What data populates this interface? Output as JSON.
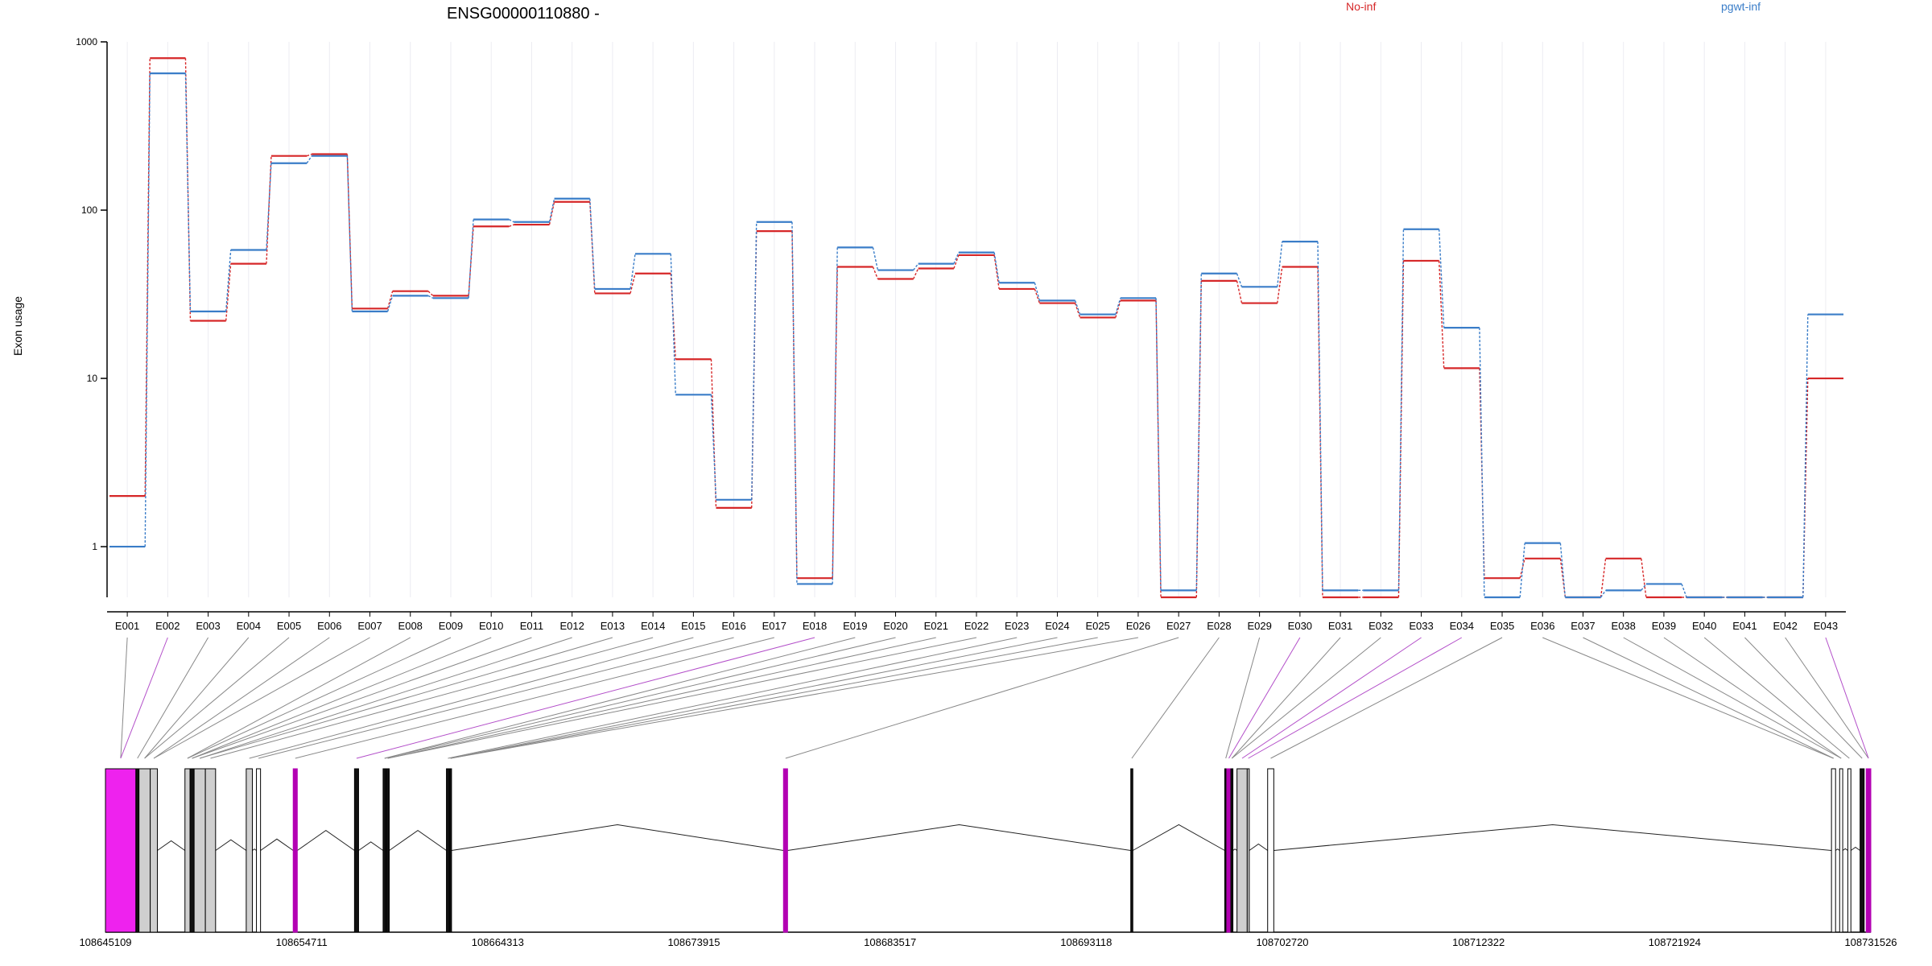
{
  "chart_data": {
    "type": "line",
    "title": "ENSG00000110880 -",
    "ylabel": "Exon usage",
    "xlabel": "",
    "yscale": "log",
    "ylim": [
      0.5,
      1000
    ],
    "yticks": [
      "1",
      "10",
      "100",
      "1000"
    ],
    "grid": "vertical",
    "legend_position": "top",
    "categories": [
      "E001",
      "E002",
      "E003",
      "E004",
      "E005",
      "E006",
      "E007",
      "E008",
      "E009",
      "E010",
      "E011",
      "E012",
      "E013",
      "E014",
      "E015",
      "E016",
      "E017",
      "E018",
      "E019",
      "E020",
      "E021",
      "E022",
      "E023",
      "E024",
      "E025",
      "E026",
      "E027",
      "E028",
      "E029",
      "E030",
      "E031",
      "E032",
      "E033",
      "E034",
      "E035",
      "E036",
      "E037",
      "E038",
      "E039",
      "E040",
      "E041",
      "E042",
      "E043"
    ],
    "series": [
      {
        "name": "No-inf",
        "color": "#d62728",
        "values": [
          2.0,
          800,
          22,
          48,
          210,
          215,
          26,
          33,
          31,
          80,
          82,
          112,
          32,
          42,
          13,
          1.7,
          75,
          0.65,
          46,
          39,
          45,
          54,
          34,
          28,
          23,
          29,
          0.5,
          38,
          28,
          46,
          0.5,
          0.5,
          50,
          11.5,
          0.65,
          0.85,
          0.5,
          0.85,
          0.5,
          0.5,
          0.5,
          0.5,
          10
        ]
      },
      {
        "name": "pgwt-inf",
        "color": "#3a7dc8",
        "values": [
          1.0,
          650,
          25,
          58,
          190,
          210,
          25,
          31,
          30,
          88,
          85,
          117,
          34,
          55,
          8,
          1.9,
          85,
          0.6,
          60,
          44,
          48,
          56,
          37,
          29,
          24,
          30,
          0.55,
          42,
          35,
          65,
          0.55,
          0.55,
          77,
          20,
          0.5,
          1.05,
          0.5,
          0.55,
          0.6,
          0.5,
          0.5,
          0.5,
          24
        ]
      }
    ]
  },
  "gene_model": {
    "coordinate_labels": [
      "108645109",
      "108654711",
      "108664313",
      "108673915",
      "108683517",
      "108693118",
      "108702720",
      "108712322",
      "108721924",
      "108731526"
    ],
    "coord_start": 108645109,
    "coord_end": 108731526,
    "highlight_color": "#ee22ee",
    "link_color": "#888888",
    "link_highlight_color": "#b34fc9",
    "exons": [
      {
        "id": "E001",
        "start": 108645109,
        "end": 108646600,
        "style": "magenta"
      },
      {
        "id": "E002",
        "start": 108646600,
        "end": 108646750,
        "style": "black"
      },
      {
        "id": "E003",
        "start": 108646750,
        "end": 108647300,
        "style": "gray"
      },
      {
        "id": "E004",
        "start": 108647300,
        "end": 108647650,
        "style": "gray"
      },
      {
        "id": "E005",
        "start": 108649000,
        "end": 108649250,
        "style": "gray"
      },
      {
        "id": "E006",
        "start": 108649250,
        "end": 108649450,
        "style": "black"
      },
      {
        "id": "E007",
        "start": 108649450,
        "end": 108650000,
        "style": "gray"
      },
      {
        "id": "E008",
        "start": 108650000,
        "end": 108650500,
        "style": "gray"
      },
      {
        "id": "E009",
        "start": 108652000,
        "end": 108652300,
        "style": "gray"
      },
      {
        "id": "E010",
        "start": 108652500,
        "end": 108652700,
        "style": "white"
      },
      {
        "id": "E011",
        "start": 108654300,
        "end": 108654500,
        "style": "purple"
      },
      {
        "id": "E012",
        "start": 108657300,
        "end": 108657500,
        "style": "black"
      },
      {
        "id": "E013",
        "start": 108658700,
        "end": 108658850,
        "style": "black"
      },
      {
        "id": "E014",
        "start": 108658850,
        "end": 108659000,
        "style": "black"
      },
      {
        "id": "E015",
        "start": 108661800,
        "end": 108661950,
        "style": "black"
      },
      {
        "id": "E016",
        "start": 108661950,
        "end": 108662050,
        "style": "black"
      },
      {
        "id": "E017",
        "start": 108678300,
        "end": 108678500,
        "style": "purple"
      },
      {
        "id": "E018",
        "start": 108695300,
        "end": 108695400,
        "style": "black"
      },
      {
        "id": "E019",
        "start": 108699900,
        "end": 108700000,
        "style": "black"
      },
      {
        "id": "E020",
        "start": 108700000,
        "end": 108700200,
        "style": "purple"
      },
      {
        "id": "E021",
        "start": 108700200,
        "end": 108700300,
        "style": "black"
      },
      {
        "id": "E022",
        "start": 108700500,
        "end": 108701000,
        "style": "gray"
      },
      {
        "id": "E023",
        "start": 108701000,
        "end": 108701100,
        "style": "gray"
      },
      {
        "id": "E024",
        "start": 108702000,
        "end": 108702300,
        "style": "white"
      },
      {
        "id": "E025",
        "start": 108729600,
        "end": 108729800,
        "style": "white"
      },
      {
        "id": "E026",
        "start": 108730000,
        "end": 108730150,
        "style": "white"
      },
      {
        "id": "E027",
        "start": 108730400,
        "end": 108730550,
        "style": "white"
      },
      {
        "id": "E028",
        "start": 108731000,
        "end": 108731200,
        "style": "black"
      },
      {
        "id": "E029",
        "start": 108731300,
        "end": 108731526,
        "style": "purple"
      }
    ],
    "link_map": [
      0,
      0,
      1,
      2,
      2,
      3,
      3,
      4,
      4,
      5,
      5,
      6,
      6,
      7,
      8,
      9,
      10,
      11,
      12,
      12,
      13,
      13,
      14,
      15,
      15,
      15,
      16,
      17,
      18,
      19,
      20,
      20,
      21,
      22,
      23,
      24,
      24,
      25,
      25,
      26,
      27,
      28,
      28
    ],
    "highlighted_links": [
      1,
      17,
      29,
      32,
      33,
      42
    ]
  }
}
